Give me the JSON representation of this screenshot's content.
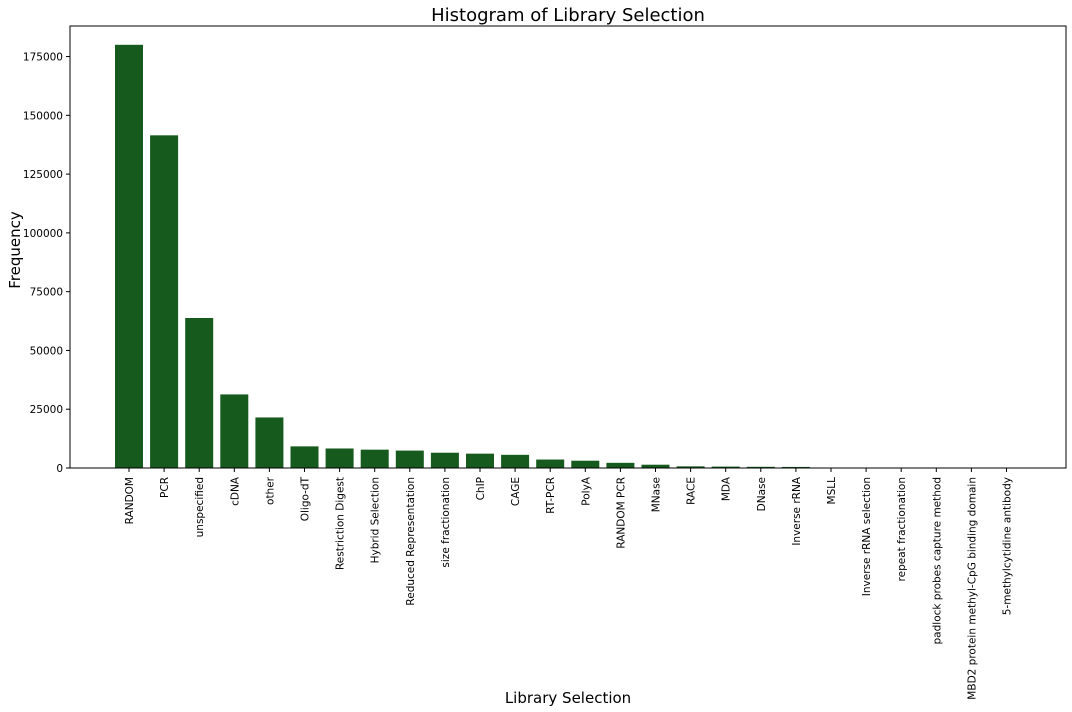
{
  "chart_data": {
    "type": "bar",
    "title": "Histogram of Library Selection",
    "xlabel": "Library Selection",
    "ylabel": "Frequency",
    "ylim": [
      0,
      188000
    ],
    "yticks": [
      0,
      25000,
      50000,
      75000,
      100000,
      125000,
      150000,
      175000
    ],
    "grid": false,
    "bar_color": "#165a1e",
    "categories": [
      "RANDOM",
      "PCR",
      "unspecified",
      "cDNA",
      "other",
      "Oligo-dT",
      "Restriction Digest",
      "Hybrid Selection",
      "Reduced Representation",
      "size fractionation",
      "ChIP",
      "CAGE",
      "RT-PCR",
      "PolyA",
      "RANDOM PCR",
      "MNase",
      "RACE",
      "MDA",
      "DNase",
      "Inverse rRNA",
      "MSLL",
      "Inverse rRNA selection",
      "repeat fractionation",
      "padlock probes capture method",
      "MBD2 protein methyl-CpG binding domain",
      "5-methylcytidine antibody"
    ],
    "values": [
      180000,
      141500,
      63800,
      31300,
      21500,
      9200,
      8300,
      7800,
      7400,
      6500,
      6100,
      5600,
      3600,
      3100,
      2200,
      1400,
      700,
      600,
      500,
      450,
      100,
      80,
      60,
      40,
      30,
      20
    ]
  }
}
